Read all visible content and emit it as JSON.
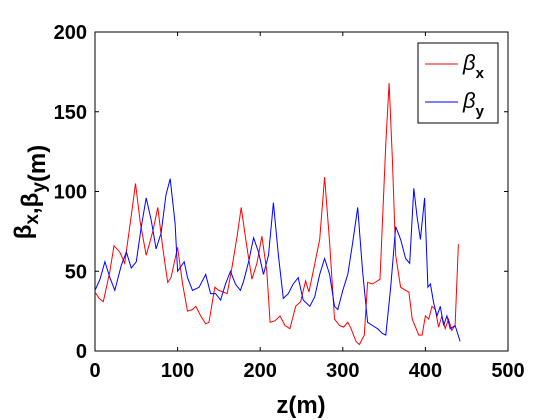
{
  "chart_data": {
    "type": "line",
    "title": "",
    "xlabel": "z(m)",
    "ylabel": {
      "parts": [
        {
          "text": "β",
          "sub": "x"
        },
        {
          "text": ",",
          "sub": ""
        },
        {
          "text": "β",
          "sub": "y"
        },
        {
          "text": "(m)",
          "sub": ""
        }
      ]
    },
    "xlim": [
      0,
      500
    ],
    "ylim": [
      0,
      200
    ],
    "xticks": [
      0,
      100,
      200,
      300,
      400,
      500
    ],
    "yticks": [
      0,
      50,
      100,
      150,
      200
    ],
    "grid": false,
    "legend_position": "top-right",
    "series": [
      {
        "name": "β",
        "name_sub": "x",
        "color": "#ff0000",
        "points": [
          [
            0,
            37
          ],
          [
            5,
            33
          ],
          [
            10,
            31
          ],
          [
            18,
            50
          ],
          [
            23,
            66
          ],
          [
            30,
            62
          ],
          [
            36,
            55
          ],
          [
            44,
            85
          ],
          [
            49,
            105
          ],
          [
            55,
            80
          ],
          [
            62,
            60
          ],
          [
            70,
            75
          ],
          [
            76,
            90
          ],
          [
            82,
            65
          ],
          [
            88,
            43
          ],
          [
            92,
            46
          ],
          [
            100,
            65
          ],
          [
            106,
            42
          ],
          [
            112,
            25
          ],
          [
            118,
            26
          ],
          [
            122,
            28
          ],
          [
            128,
            22
          ],
          [
            134,
            17
          ],
          [
            138,
            18
          ],
          [
            145,
            40
          ],
          [
            150,
            38
          ],
          [
            160,
            36
          ],
          [
            165,
            50
          ],
          [
            172,
            72
          ],
          [
            177,
            90
          ],
          [
            183,
            68
          ],
          [
            190,
            45
          ],
          [
            196,
            55
          ],
          [
            202,
            72
          ],
          [
            208,
            50
          ],
          [
            212,
            18
          ],
          [
            218,
            19
          ],
          [
            224,
            22
          ],
          [
            230,
            16
          ],
          [
            236,
            14
          ],
          [
            243,
            28
          ],
          [
            249,
            31
          ],
          [
            255,
            44
          ],
          [
            259,
            37
          ],
          [
            265,
            52
          ],
          [
            272,
            70
          ],
          [
            278,
            109
          ],
          [
            284,
            68
          ],
          [
            290,
            20
          ],
          [
            296,
            16
          ],
          [
            301,
            15
          ],
          [
            306,
            18
          ],
          [
            310,
            14
          ],
          [
            316,
            6
          ],
          [
            320,
            4
          ],
          [
            326,
            10
          ],
          [
            330,
            43
          ],
          [
            336,
            42
          ],
          [
            345,
            45
          ],
          [
            352,
            130
          ],
          [
            356,
            168
          ],
          [
            360,
            120
          ],
          [
            364,
            60
          ],
          [
            370,
            40
          ],
          [
            376,
            38
          ],
          [
            380,
            37
          ],
          [
            384,
            20
          ],
          [
            388,
            15
          ],
          [
            392,
            10
          ],
          [
            396,
            10
          ],
          [
            400,
            22
          ],
          [
            404,
            20
          ],
          [
            408,
            28
          ],
          [
            412,
            26
          ],
          [
            416,
            15
          ],
          [
            420,
            22
          ],
          [
            424,
            14
          ],
          [
            428,
            20
          ],
          [
            432,
            13
          ],
          [
            436,
            16
          ],
          [
            440,
            67
          ]
        ]
      },
      {
        "name": "β",
        "name_sub": "y",
        "color": "#0000ff",
        "points": [
          [
            0,
            38
          ],
          [
            6,
            45
          ],
          [
            12,
            56
          ],
          [
            18,
            46
          ],
          [
            24,
            38
          ],
          [
            32,
            54
          ],
          [
            38,
            62
          ],
          [
            44,
            52
          ],
          [
            50,
            56
          ],
          [
            56,
            78
          ],
          [
            62,
            96
          ],
          [
            68,
            82
          ],
          [
            74,
            64
          ],
          [
            80,
            74
          ],
          [
            86,
            98
          ],
          [
            91,
            108
          ],
          [
            97,
            80
          ],
          [
            100,
            50
          ],
          [
            108,
            56
          ],
          [
            112,
            46
          ],
          [
            118,
            38
          ],
          [
            126,
            40
          ],
          [
            134,
            48
          ],
          [
            140,
            36
          ],
          [
            146,
            36
          ],
          [
            152,
            32
          ],
          [
            158,
            42
          ],
          [
            164,
            50
          ],
          [
            170,
            42
          ],
          [
            176,
            38
          ],
          [
            180,
            44
          ],
          [
            186,
            56
          ],
          [
            192,
            71
          ],
          [
            198,
            62
          ],
          [
            204,
            48
          ],
          [
            210,
            60
          ],
          [
            216,
            93
          ],
          [
            222,
            60
          ],
          [
            228,
            33
          ],
          [
            234,
            36
          ],
          [
            240,
            42
          ],
          [
            246,
            46
          ],
          [
            252,
            32
          ],
          [
            260,
            28
          ],
          [
            266,
            34
          ],
          [
            272,
            48
          ],
          [
            278,
            58
          ],
          [
            284,
            48
          ],
          [
            290,
            28
          ],
          [
            294,
            26
          ],
          [
            300,
            38
          ],
          [
            306,
            48
          ],
          [
            312,
            68
          ],
          [
            318,
            90
          ],
          [
            324,
            50
          ],
          [
            330,
            18
          ],
          [
            336,
            16
          ],
          [
            342,
            14
          ],
          [
            348,
            11
          ],
          [
            352,
            10
          ],
          [
            358,
            40
          ],
          [
            364,
            78
          ],
          [
            370,
            70
          ],
          [
            376,
            58
          ],
          [
            381,
            55
          ],
          [
            386,
            102
          ],
          [
            390,
            84
          ],
          [
            394,
            70
          ],
          [
            399,
            96
          ],
          [
            403,
            40
          ],
          [
            406,
            42
          ],
          [
            410,
            30
          ],
          [
            414,
            22
          ],
          [
            418,
            28
          ],
          [
            422,
            16
          ],
          [
            426,
            22
          ],
          [
            430,
            14
          ],
          [
            436,
            16
          ],
          [
            442,
            6
          ]
        ]
      }
    ]
  }
}
